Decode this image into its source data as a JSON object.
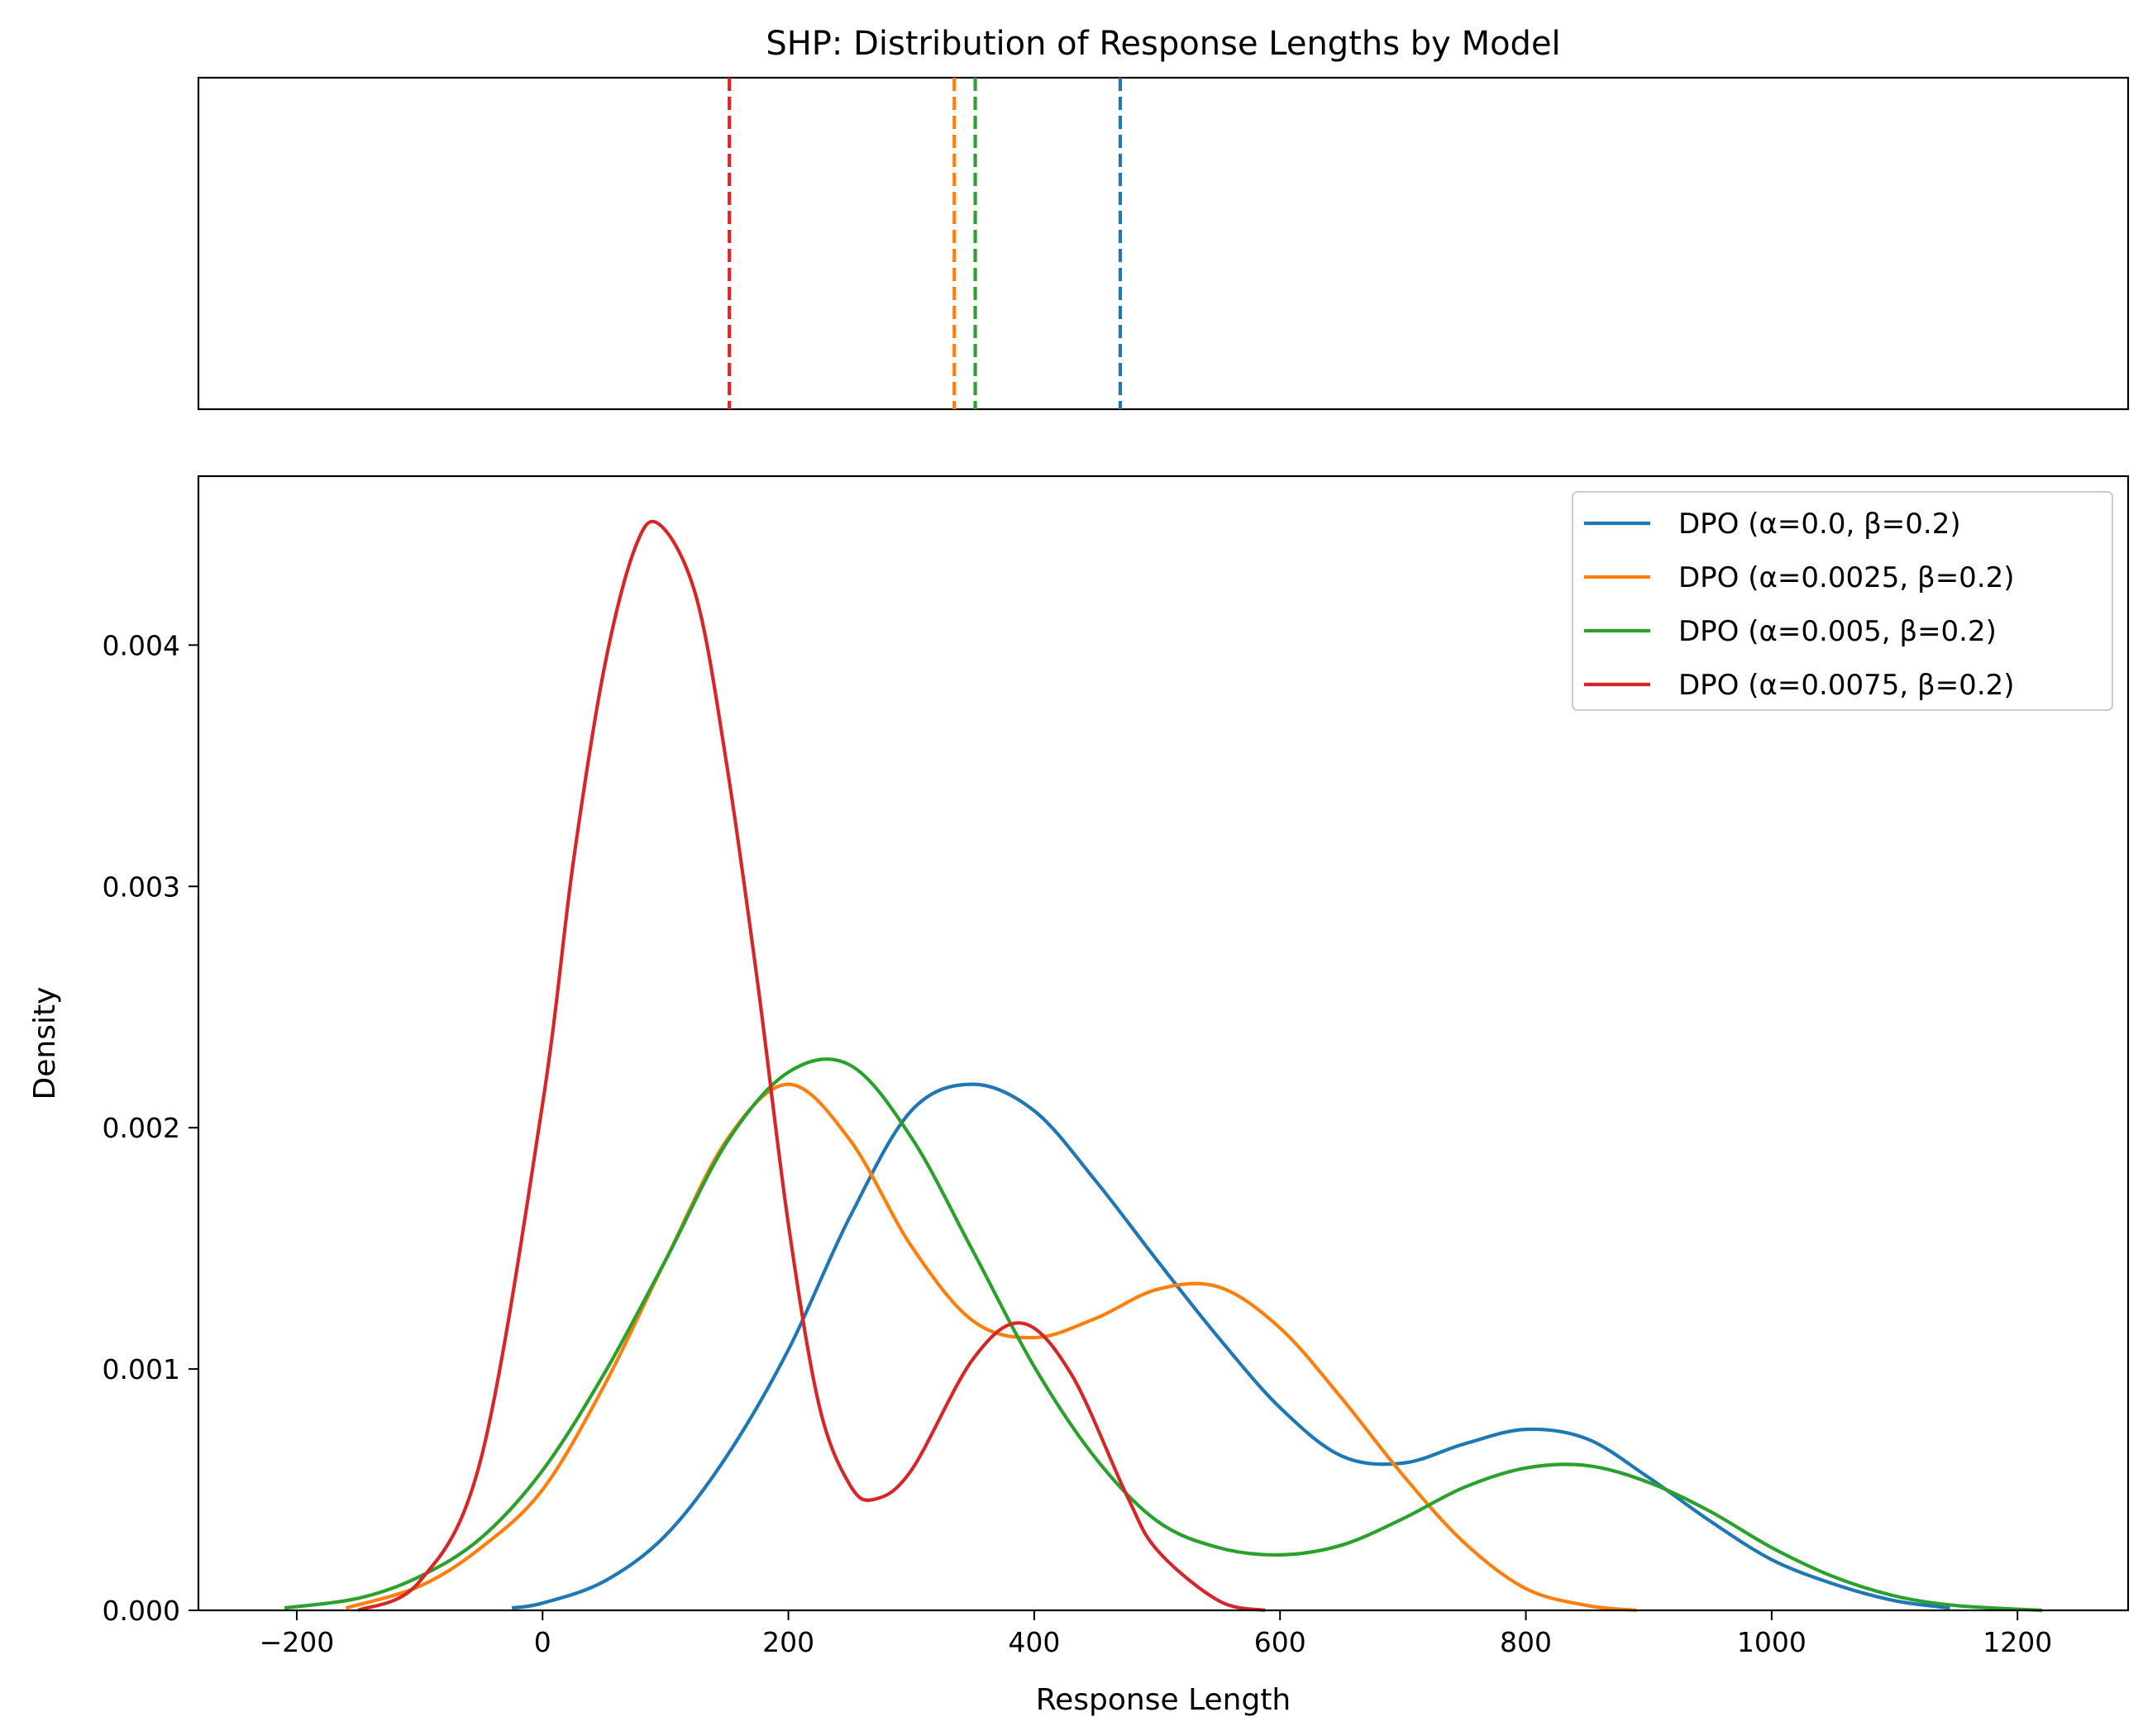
{
  "chart_data": {
    "type": "line",
    "title": "SHP: Distribution of Response Lengths by Model",
    "xlabel": "Response Length",
    "ylabel": "Density",
    "xlim": [
      -280,
      1290
    ],
    "ylim": [
      0,
      0.0047
    ],
    "x_ticks": [
      -200,
      0,
      200,
      400,
      600,
      800,
      1000,
      1200
    ],
    "x_tick_labels": [
      "−200",
      "0",
      "200",
      "400",
      "600",
      "800",
      "1000",
      "1200"
    ],
    "y_ticks": [
      0,
      0.001,
      0.002,
      0.003,
      0.004
    ],
    "y_tick_labels": [
      "0.000",
      "0.001",
      "0.002",
      "0.003",
      "0.004"
    ],
    "legend_position": "top-right",
    "grid": false,
    "series": [
      {
        "name": "DPO (α=0.0, β=0.2)",
        "color": "#1f77b4",
        "mean": 470,
        "x": [
          -25,
          0,
          50,
          100,
          150,
          200,
          250,
          300,
          350,
          400,
          450,
          500,
          550,
          600,
          650,
          700,
          750,
          800,
          850,
          900,
          950,
          1000,
          1050,
          1100,
          1145
        ],
        "y": [
          1e-05,
          3e-05,
          0.00012,
          0.00031,
          0.00064,
          0.00108,
          0.00163,
          0.00207,
          0.00218,
          0.00207,
          0.00178,
          0.00145,
          0.00113,
          0.00084,
          0.00064,
          0.00061,
          0.00069,
          0.00075,
          0.00071,
          0.00055,
          0.00037,
          0.00021,
          0.00011,
          4e-05,
          1e-05
        ]
      },
      {
        "name": "DPO (α=0.0025, β=0.2)",
        "color": "#ff7f0e",
        "mean": 335,
        "x": [
          -160,
          -100,
          -50,
          0,
          50,
          100,
          150,
          200,
          250,
          300,
          350,
          400,
          450,
          500,
          550,
          600,
          650,
          700,
          750,
          800,
          850,
          890
        ],
        "y": [
          1e-05,
          0.0001,
          0.00026,
          0.0005,
          0.00093,
          0.00145,
          0.00195,
          0.00218,
          0.00195,
          0.00151,
          0.0012,
          0.00113,
          0.00121,
          0.00133,
          0.00134,
          0.00117,
          0.00088,
          0.00056,
          0.00028,
          9e-05,
          2e-05,
          0.0
        ]
      },
      {
        "name": "DPO (α=0.005, β=0.2)",
        "color": "#2ca02c",
        "mean": 352,
        "x": [
          -210,
          -150,
          -100,
          -50,
          0,
          50,
          100,
          150,
          200,
          250,
          300,
          350,
          400,
          450,
          500,
          550,
          600,
          650,
          700,
          750,
          800,
          850,
          900,
          950,
          1000,
          1050,
          1100,
          1150,
          1220
        ],
        "y": [
          1e-05,
          5e-05,
          0.00014,
          0.0003,
          0.00058,
          0.00098,
          0.00145,
          0.00194,
          0.00223,
          0.00226,
          0.00196,
          0.00149,
          0.00101,
          0.00063,
          0.00037,
          0.00026,
          0.00023,
          0.00027,
          0.00038,
          0.00051,
          0.00059,
          0.0006,
          0.00053,
          0.00041,
          0.00026,
          0.00014,
          6e-05,
          2e-05,
          0.0
        ]
      },
      {
        "name": "DPO (α=0.0075, β=0.2)",
        "color": "#d62728",
        "mean": 152,
        "x": [
          -150,
          -100,
          -50,
          0,
          25,
          50,
          75,
          95,
          125,
          150,
          175,
          200,
          225,
          250,
          270,
          300,
          350,
          390,
          430,
          475,
          500,
          550,
          588
        ],
        "y": [
          0.0,
          0.00012,
          0.00063,
          0.0021,
          0.0031,
          0.0039,
          0.0044,
          0.0045,
          0.0042,
          0.0035,
          0.0026,
          0.0016,
          0.00085,
          0.00052,
          0.00046,
          0.00058,
          0.00104,
          0.00119,
          0.00098,
          0.00048,
          0.00025,
          4e-05,
          0.0
        ]
      }
    ]
  }
}
